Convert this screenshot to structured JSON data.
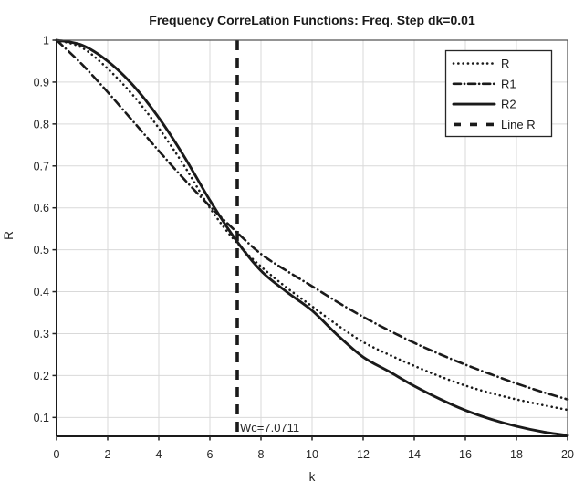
{
  "colors": {
    "background": "#ffffff",
    "curve": "#1a1a1a",
    "grid": "#d9d9d9",
    "axis_box": "#4d4d4d",
    "axis_dark": "#1a1a1a",
    "tick": "#262626",
    "legend_border": "#262626"
  },
  "chart_data": {
    "type": "line",
    "title": "Frequency CorreLation Functions: Freq. Step dk=0.01",
    "xlabel": "k",
    "ylabel": "R",
    "xlim": [
      0,
      20
    ],
    "ylim": [
      0.055,
      1.0
    ],
    "xticks": [
      0,
      2,
      4,
      6,
      8,
      10,
      12,
      14,
      16,
      18,
      20
    ],
    "yticks": [
      0.1,
      0.2,
      0.3,
      0.4,
      0.5,
      0.6,
      0.7,
      0.8,
      0.9,
      1
    ],
    "grid": true,
    "legend_position": "upper right",
    "x": [
      0,
      1,
      2,
      3,
      4,
      5,
      6,
      7,
      8,
      9,
      10,
      11,
      12,
      13,
      14,
      15,
      16,
      17,
      18,
      19,
      20
    ],
    "series": [
      {
        "name": "R",
        "style": "dotted",
        "values": [
          1.0,
          0.982,
          0.932,
          0.868,
          0.79,
          0.7,
          0.6,
          0.52,
          0.46,
          0.41,
          0.365,
          0.32,
          0.28,
          0.25,
          0.223,
          0.198,
          0.176,
          0.158,
          0.143,
          0.13,
          0.118
        ]
      },
      {
        "name": "R1",
        "style": "dashdot",
        "values": [
          1.0,
          0.942,
          0.876,
          0.806,
          0.736,
          0.668,
          0.604,
          0.545,
          0.49,
          0.45,
          0.413,
          0.375,
          0.34,
          0.308,
          0.278,
          0.251,
          0.226,
          0.203,
          0.181,
          0.161,
          0.143
        ]
      },
      {
        "name": "R2",
        "style": "solid",
        "values": [
          1.0,
          0.988,
          0.95,
          0.892,
          0.815,
          0.722,
          0.618,
          0.525,
          0.45,
          0.4,
          0.355,
          0.296,
          0.244,
          0.21,
          0.175,
          0.144,
          0.117,
          0.096,
          0.079,
          0.066,
          0.057
        ]
      },
      {
        "name": "Line R",
        "style": "dashed",
        "kind": "vline",
        "x_value": 7.0711
      }
    ],
    "vline": {
      "x": 7.0711,
      "style": "dashed"
    },
    "annotation": {
      "text": "Wc=7.0711",
      "x": 7.0711,
      "y": 0.07
    }
  }
}
